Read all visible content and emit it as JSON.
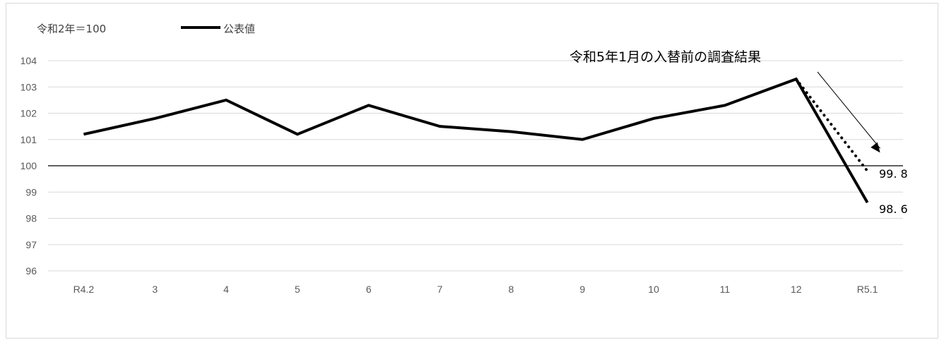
{
  "chart_data": {
    "type": "line",
    "unit_label": "令和2年＝100",
    "categories": [
      "R4.2",
      "3",
      "4",
      "5",
      "6",
      "7",
      "8",
      "9",
      "10",
      "11",
      "12",
      "R5.1"
    ],
    "ylim": [
      96,
      104
    ],
    "yticks": [
      "96",
      "97",
      "98",
      "99",
      "100",
      "101",
      "102",
      "103",
      "104"
    ],
    "grid": true,
    "legend": {
      "position": "top-left",
      "entries": [
        "公表値"
      ]
    },
    "series": [
      {
        "name": "公表値",
        "style": "solid",
        "color": "#000000",
        "values": [
          101.2,
          101.8,
          102.5,
          101.2,
          102.3,
          101.5,
          101.3,
          101.0,
          101.8,
          102.3,
          103.3,
          98.6
        ]
      },
      {
        "style": "dotted",
        "color": "#000000",
        "points": [
          {
            "category": "12",
            "value": 103.3
          },
          {
            "category": "R5.1",
            "value": 99.8
          }
        ]
      }
    ],
    "data_labels": [
      {
        "text": "99. 8",
        "category": "R5.1",
        "value": 99.8
      },
      {
        "text": "98. 6",
        "category": "R5.1",
        "value": 98.6
      }
    ],
    "annotation": {
      "text": "令和5年1月の入替前の調査結果"
    },
    "colors": {
      "grid": "#d9d9d9",
      "baseline": "#000000",
      "line": "#000000"
    }
  }
}
